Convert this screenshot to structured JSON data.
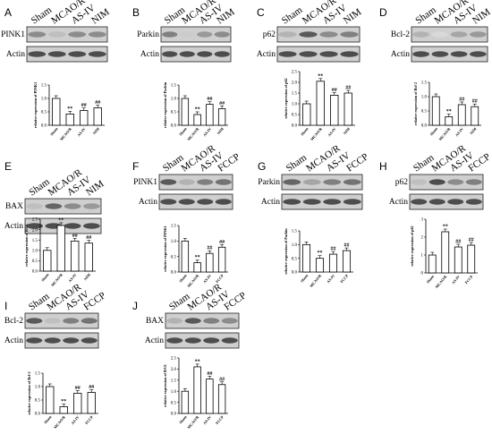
{
  "figure": {
    "panels": [
      {
        "letter": "A",
        "lanes": [
          "Sham",
          "MCAO/R",
          "AS-IV",
          "NIM"
        ],
        "rows": [
          "PINK1",
          "Actin"
        ]
      },
      {
        "letter": "B",
        "lanes": [
          "Sham",
          "MCAO/R",
          "AS-IV",
          "NIM"
        ],
        "rows": [
          "Parkin",
          "Actin"
        ]
      },
      {
        "letter": "C",
        "lanes": [
          "Sham",
          "MCAO/R",
          "AS-IV",
          "NIM"
        ],
        "rows": [
          "p62",
          "Actin"
        ]
      },
      {
        "letter": "D",
        "lanes": [
          "Sham",
          "MCAO/R",
          "AS-IV",
          "NIM"
        ],
        "rows": [
          "Bcl-2",
          "Actin"
        ]
      },
      {
        "letter": "E",
        "lanes": [
          "Sham",
          "MCAO/R",
          "AS-IV",
          "NIM"
        ],
        "rows": [
          "BAX",
          "Actin"
        ]
      },
      {
        "letter": "F",
        "lanes": [
          "Sham",
          "MCAO/R",
          "AS-IV",
          "FCCP"
        ],
        "rows": [
          "PINK1",
          "Actin"
        ]
      },
      {
        "letter": "G",
        "lanes": [
          "Sham",
          "MCAO/R",
          "AS-IV",
          "FCCP"
        ],
        "rows": [
          "Parkin",
          "Actin"
        ]
      },
      {
        "letter": "H",
        "lanes": [
          "Sham",
          "MCAO/R",
          "AS-IV",
          "FCCP"
        ],
        "rows": [
          "p62",
          "Actin"
        ]
      },
      {
        "letter": "I",
        "lanes": [
          "Sham",
          "MCAO/R",
          "AS-IV",
          "FCCP"
        ],
        "rows": [
          "Bcl-2",
          "Actin"
        ]
      },
      {
        "letter": "J",
        "lanes": [
          "Sham",
          "MCAO/R",
          "AS-IV",
          "FCCP"
        ],
        "rows": [
          "BAX",
          "Actin"
        ]
      }
    ]
  },
  "chart_data": [
    {
      "panel": "A",
      "type": "bar",
      "ylabel": "relative expression of PINK1",
      "categories": [
        "Sham",
        "MCAO/R",
        "AS-IV",
        "NIM"
      ],
      "values": [
        1.0,
        0.42,
        0.55,
        0.65
      ],
      "ylim": [
        0,
        1.5
      ],
      "yticks": [
        "0.0",
        "0.5",
        "1.0",
        "1.5"
      ],
      "annotations": [
        "",
        "**",
        "##",
        "##"
      ]
    },
    {
      "panel": "B",
      "type": "bar",
      "ylabel": "relative expression of Parkin",
      "categories": [
        "Sham",
        "MCAO/R",
        "AS-IV",
        "NIM"
      ],
      "values": [
        1.0,
        0.4,
        0.78,
        0.62
      ],
      "ylim": [
        0,
        1.5
      ],
      "yticks": [
        "0.0",
        "0.5",
        "1.0",
        "1.5"
      ],
      "annotations": [
        "",
        "**",
        "##",
        "##"
      ]
    },
    {
      "panel": "C",
      "type": "bar",
      "ylabel": "relative expression of p62",
      "categories": [
        "Sham",
        "MCAO/R",
        "AS-IV",
        "NIM"
      ],
      "values": [
        1.0,
        2.05,
        1.4,
        1.5
      ],
      "ylim": [
        0,
        2.5
      ],
      "yticks": [
        "0.0",
        "0.5",
        "1.0",
        "1.5",
        "2.0",
        "2.5"
      ],
      "annotations": [
        "",
        "**",
        "##",
        "##"
      ]
    },
    {
      "panel": "D",
      "type": "bar",
      "ylabel": "relative expression of Bcl-2",
      "categories": [
        "Sham",
        "MCAO/R",
        "AS-IV",
        "NIM"
      ],
      "values": [
        1.0,
        0.3,
        0.72,
        0.65
      ],
      "ylim": [
        0,
        1.5
      ],
      "yticks": [
        "0.0",
        "0.5",
        "1.0",
        "1.5"
      ],
      "annotations": [
        "",
        "**",
        "##",
        "##"
      ]
    },
    {
      "panel": "E",
      "type": "bar",
      "ylabel": "relative expression of BAX",
      "categories": [
        "Sham",
        "MCAO/R",
        "AS-IV",
        "NIM"
      ],
      "values": [
        1.0,
        2.2,
        1.45,
        1.35
      ],
      "ylim": [
        0,
        2.5
      ],
      "yticks": [
        "0.0",
        "0.5",
        "1.0",
        "1.5",
        "2.0",
        "2.5"
      ],
      "annotations": [
        "",
        "**",
        "##",
        "##"
      ]
    },
    {
      "panel": "F",
      "type": "bar",
      "ylabel": "relative expression of PINK1",
      "categories": [
        "Sham",
        "MCAO/R",
        "AS-IV",
        "FCCP"
      ],
      "values": [
        1.0,
        0.3,
        0.6,
        0.8
      ],
      "ylim": [
        0,
        1.5
      ],
      "yticks": [
        "0.0",
        "0.5",
        "1.0",
        "1.5"
      ],
      "annotations": [
        "",
        "**",
        "##",
        "##"
      ]
    },
    {
      "panel": "G",
      "type": "bar",
      "ylabel": "relative expression of Parkin",
      "categories": [
        "Sham",
        "MCAO/R",
        "AS-IV",
        "FCCP"
      ],
      "values": [
        1.0,
        0.5,
        0.65,
        0.78
      ],
      "ylim": [
        0,
        1.5
      ],
      "yticks": [
        "0.0",
        "0.5",
        "1.0",
        "1.5"
      ],
      "annotations": [
        "",
        "**",
        "##",
        "##"
      ]
    },
    {
      "panel": "H",
      "type": "bar",
      "ylabel": "relative expression of p62",
      "categories": [
        "Sham",
        "MCAO/R",
        "AS-IV",
        "FCCP"
      ],
      "values": [
        1.0,
        2.3,
        1.45,
        1.55
      ],
      "ylim": [
        0,
        3
      ],
      "yticks": [
        "0",
        "1",
        "2",
        "3"
      ],
      "annotations": [
        "",
        "**",
        "##",
        "##"
      ]
    },
    {
      "panel": "I",
      "type": "bar",
      "ylabel": "relative expression of Bcl-2",
      "categories": [
        "Sham",
        "MCAO/R",
        "AS-IV",
        "FCCP"
      ],
      "values": [
        1.0,
        0.25,
        0.75,
        0.78
      ],
      "ylim": [
        0,
        1.5
      ],
      "yticks": [
        "0.0",
        "0.5",
        "1.0",
        "1.5"
      ],
      "annotations": [
        "",
        "**",
        "##",
        "##"
      ]
    },
    {
      "panel": "J",
      "type": "bar",
      "ylabel": "relative expression of BAX",
      "categories": [
        "Sham",
        "MCAO/R",
        "AS-IV",
        "FCCP"
      ],
      "values": [
        1.0,
        2.1,
        1.55,
        1.3
      ],
      "ylim": [
        0,
        2.5
      ],
      "yticks": [
        "0.0",
        "0.5",
        "1.0",
        "1.5",
        "2.0",
        "2.5"
      ],
      "annotations": [
        "",
        "**",
        "##",
        "##"
      ]
    }
  ]
}
